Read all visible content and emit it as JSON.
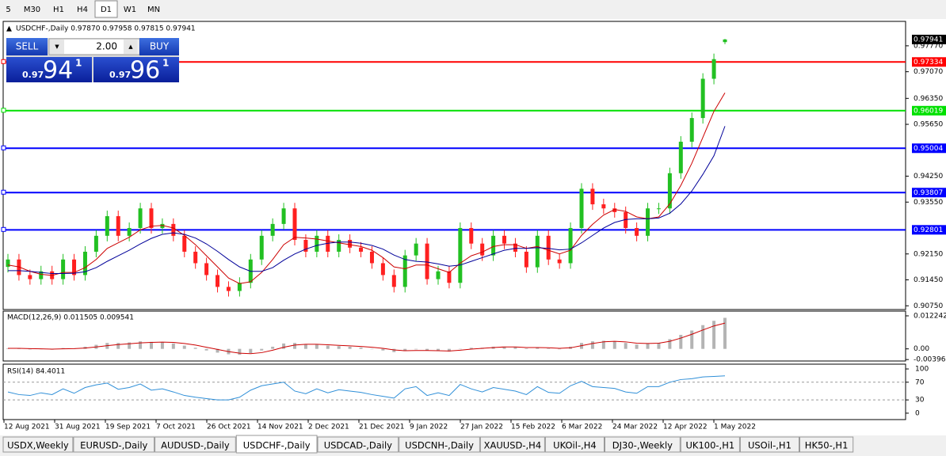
{
  "toolbar": {
    "timeframes": [
      "5",
      "M30",
      "H1",
      "H4",
      "D1",
      "W1",
      "MN"
    ],
    "selected": 4
  },
  "chart": {
    "header": "USDCHF-,Daily  0.97870 0.97958 0.97815 0.97941",
    "trade_panel": {
      "sell": "SELL",
      "buy": "BUY",
      "lot": "2.00",
      "bid": {
        "prefix": "0.97",
        "big": "94",
        "sup": "1"
      },
      "ask": {
        "prefix": "0.97",
        "big": "96",
        "sup": "1"
      }
    },
    "ylim": [
      0.9067,
      0.9843
    ],
    "ticks": [
      {
        "value": 0.9777,
        "label": "0.97770"
      },
      {
        "value": 0.9707,
        "label": "0.97070"
      },
      {
        "value": 0.9635,
        "label": "0.96350"
      },
      {
        "value": 0.9565,
        "label": "0.95650"
      },
      {
        "value": 0.9425,
        "label": "0.94250"
      },
      {
        "value": 0.9355,
        "label": "0.93550"
      },
      {
        "value": 0.9215,
        "label": "0.92150"
      },
      {
        "value": 0.9145,
        "label": "0.91450"
      },
      {
        "value": 0.9075,
        "label": "0.90750"
      }
    ],
    "levels": [
      {
        "value": 0.97334,
        "color": "#ff0000"
      },
      {
        "value": 0.96019,
        "color": "#00e000"
      },
      {
        "value": 0.95004,
        "color": "#0000ff"
      },
      {
        "value": 0.93807,
        "color": "#0000ff"
      },
      {
        "value": 0.92801,
        "color": "#0000ff"
      }
    ],
    "current_price": 0.97941,
    "up_color": "#22c022",
    "down_color": "#ff2020",
    "candles": [
      [
        0.918,
        0.9215,
        0.9165,
        0.92
      ],
      [
        0.92,
        0.9215,
        0.9143,
        0.9158
      ],
      [
        0.9158,
        0.9173,
        0.9132,
        0.9147
      ],
      [
        0.9147,
        0.9183,
        0.9132,
        0.9168
      ],
      [
        0.9168,
        0.9183,
        0.9132,
        0.9147
      ],
      [
        0.9147,
        0.9215,
        0.9132,
        0.92
      ],
      [
        0.92,
        0.9215,
        0.9143,
        0.9158
      ],
      [
        0.9158,
        0.9236,
        0.9143,
        0.9221
      ],
      [
        0.9221,
        0.9279,
        0.9206,
        0.9264
      ],
      [
        0.9264,
        0.9332,
        0.9249,
        0.9317
      ],
      [
        0.9317,
        0.9332,
        0.9249,
        0.9264
      ],
      [
        0.9264,
        0.93,
        0.9249,
        0.9285
      ],
      [
        0.9285,
        0.9353,
        0.927,
        0.9338
      ],
      [
        0.9338,
        0.9353,
        0.927,
        0.9285
      ],
      [
        0.9285,
        0.9311,
        0.927,
        0.9296
      ],
      [
        0.9296,
        0.9311,
        0.9249,
        0.9264
      ],
      [
        0.9264,
        0.9279,
        0.9206,
        0.9221
      ],
      [
        0.9221,
        0.9236,
        0.9175,
        0.919
      ],
      [
        0.919,
        0.9205,
        0.9143,
        0.9158
      ],
      [
        0.9158,
        0.9173,
        0.9111,
        0.9126
      ],
      [
        0.9126,
        0.9141,
        0.91,
        0.9115
      ],
      [
        0.9115,
        0.9152,
        0.91,
        0.9137
      ],
      [
        0.9137,
        0.9215,
        0.9122,
        0.92
      ],
      [
        0.92,
        0.9279,
        0.9185,
        0.9264
      ],
      [
        0.9264,
        0.9311,
        0.9249,
        0.9296
      ],
      [
        0.9296,
        0.9353,
        0.9281,
        0.9338
      ],
      [
        0.9338,
        0.9353,
        0.9238,
        0.9253
      ],
      [
        0.9253,
        0.9268,
        0.9206,
        0.9221
      ],
      [
        0.9221,
        0.9279,
        0.9206,
        0.9264
      ],
      [
        0.9264,
        0.9279,
        0.9206,
        0.9221
      ],
      [
        0.9221,
        0.9268,
        0.9206,
        0.9253
      ],
      [
        0.9253,
        0.9268,
        0.9217,
        0.9232
      ],
      [
        0.9232,
        0.9247,
        0.9206,
        0.9221
      ],
      [
        0.9221,
        0.9236,
        0.9175,
        0.919
      ],
      [
        0.919,
        0.9205,
        0.9143,
        0.9158
      ],
      [
        0.9158,
        0.9173,
        0.9111,
        0.9126
      ],
      [
        0.9126,
        0.9226,
        0.9111,
        0.9211
      ],
      [
        0.9211,
        0.9258,
        0.9196,
        0.9243
      ],
      [
        0.9243,
        0.9258,
        0.9132,
        0.9147
      ],
      [
        0.9147,
        0.9183,
        0.9132,
        0.9168
      ],
      [
        0.9168,
        0.9183,
        0.9122,
        0.9137
      ],
      [
        0.9137,
        0.93,
        0.9122,
        0.9285
      ],
      [
        0.9285,
        0.93,
        0.9228,
        0.9243
      ],
      [
        0.9243,
        0.9258,
        0.9196,
        0.9211
      ],
      [
        0.9211,
        0.9279,
        0.9196,
        0.9264
      ],
      [
        0.9264,
        0.9279,
        0.9228,
        0.9243
      ],
      [
        0.9243,
        0.9258,
        0.9206,
        0.9221
      ],
      [
        0.9221,
        0.9236,
        0.9164,
        0.9179
      ],
      [
        0.9179,
        0.9279,
        0.9164,
        0.9264
      ],
      [
        0.9264,
        0.9279,
        0.9185,
        0.92
      ],
      [
        0.92,
        0.9215,
        0.9175,
        0.919
      ],
      [
        0.919,
        0.93,
        0.9175,
        0.9285
      ],
      [
        0.9285,
        0.9406,
        0.927,
        0.9391
      ],
      [
        0.9391,
        0.9406,
        0.9334,
        0.9349
      ],
      [
        0.9349,
        0.9364,
        0.9323,
        0.9338
      ],
      [
        0.9338,
        0.9353,
        0.9313,
        0.9328
      ],
      [
        0.9328,
        0.9343,
        0.927,
        0.9285
      ],
      [
        0.9285,
        0.93,
        0.9249,
        0.9264
      ],
      [
        0.9264,
        0.9353,
        0.9249,
        0.9338
      ],
      [
        0.9338,
        0.9353,
        0.9323,
        0.9338
      ],
      [
        0.9338,
        0.9448,
        0.9323,
        0.9433
      ],
      [
        0.9433,
        0.9533,
        0.9418,
        0.9518
      ],
      [
        0.9518,
        0.9597,
        0.9503,
        0.9582
      ],
      [
        0.9582,
        0.9703,
        0.9567,
        0.9688
      ],
      [
        0.9688,
        0.9756,
        0.9673,
        0.9741
      ],
      [
        0.9787,
        0.97958,
        0.97815,
        0.97941
      ]
    ],
    "ma_fast": {
      "color": "#cc0000",
      "values": [
        0.9185,
        0.918,
        0.9168,
        0.916,
        0.9157,
        0.9165,
        0.9165,
        0.9178,
        0.92,
        0.923,
        0.9245,
        0.926,
        0.928,
        0.929,
        0.9292,
        0.9285,
        0.9265,
        0.924,
        0.921,
        0.918,
        0.915,
        0.9135,
        0.914,
        0.9165,
        0.92,
        0.924,
        0.926,
        0.9258,
        0.9255,
        0.925,
        0.9245,
        0.924,
        0.9235,
        0.9225,
        0.9205,
        0.918,
        0.9175,
        0.9185,
        0.9185,
        0.9175,
        0.9165,
        0.919,
        0.921,
        0.922,
        0.9235,
        0.924,
        0.924,
        0.923,
        0.9235,
        0.9225,
        0.9215,
        0.9225,
        0.9265,
        0.9295,
        0.932,
        0.9335,
        0.933,
        0.9315,
        0.931,
        0.9315,
        0.935,
        0.94,
        0.946,
        0.953,
        0.96,
        0.965
      ]
    },
    "ma_slow": {
      "color": "#000099",
      "values": [
        0.917,
        0.917,
        0.9168,
        0.9165,
        0.9162,
        0.9162,
        0.9163,
        0.9167,
        0.9178,
        0.9195,
        0.921,
        0.9225,
        0.9242,
        0.9257,
        0.9268,
        0.9272,
        0.9268,
        0.9258,
        0.9242,
        0.9222,
        0.92,
        0.918,
        0.9168,
        0.9168,
        0.9178,
        0.9198,
        0.9215,
        0.9228,
        0.9238,
        0.9244,
        0.9247,
        0.9247,
        0.9244,
        0.9238,
        0.9228,
        0.9212,
        0.92,
        0.9195,
        0.9193,
        0.9188,
        0.9182,
        0.9185,
        0.9195,
        0.9205,
        0.9215,
        0.9225,
        0.923,
        0.923,
        0.9232,
        0.923,
        0.9226,
        0.9228,
        0.9245,
        0.9265,
        0.9285,
        0.93,
        0.9308,
        0.931,
        0.931,
        0.9312,
        0.9325,
        0.935,
        0.9385,
        0.943,
        0.948,
        0.956
      ]
    }
  },
  "macd": {
    "label": "MACD(12,26,9) 0.011505 0.009541",
    "ylim": [
      -0.0045,
      0.0137
    ],
    "ticks": [
      0.012242,
      {
        "value": 0,
        "label": "0.00"
      },
      -0.003963
    ],
    "histogram_color": "#b4b4b4",
    "signal_color": "#cc0000",
    "histogram": [
      0.0002,
      0.0001,
      -0.0002,
      0.0,
      -0.0003,
      0.0003,
      0.0002,
      0.0008,
      0.0015,
      0.0022,
      0.0022,
      0.0024,
      0.0028,
      0.0026,
      0.0025,
      0.002,
      0.0012,
      0.0004,
      -0.0006,
      -0.0014,
      -0.002,
      -0.0022,
      -0.0016,
      -0.0006,
      0.0008,
      0.002,
      0.0022,
      0.0018,
      0.0016,
      0.0012,
      0.001,
      0.0008,
      0.0005,
      0.0,
      -0.0006,
      -0.0012,
      -0.0008,
      -0.0002,
      -0.0006,
      -0.0008,
      -0.001,
      0.0,
      0.0004,
      0.0004,
      0.0008,
      0.0008,
      0.0006,
      0.0002,
      0.0006,
      0.0002,
      0.0,
      0.0008,
      0.0022,
      0.0028,
      0.003,
      0.0028,
      0.0022,
      0.0016,
      0.002,
      0.0022,
      0.0036,
      0.0052,
      0.0068,
      0.0088,
      0.0104,
      0.011505
    ],
    "signal": [
      0.0002,
      0.0002,
      0.0001,
      0.0,
      -0.0001,
      0.0,
      0.0001,
      0.0003,
      0.0007,
      0.0012,
      0.0016,
      0.0019,
      0.0022,
      0.0024,
      0.0025,
      0.0024,
      0.002,
      0.0014,
      0.0006,
      -0.0002,
      -0.001,
      -0.0016,
      -0.0018,
      -0.0014,
      -0.0005,
      0.0006,
      0.0014,
      0.0017,
      0.0017,
      0.0015,
      0.0013,
      0.0011,
      0.0009,
      0.0006,
      0.0002,
      -0.0004,
      -0.0007,
      -0.0006,
      -0.0006,
      -0.0007,
      -0.0008,
      -0.0005,
      -0.0001,
      0.0002,
      0.0005,
      0.0007,
      0.0007,
      0.0005,
      0.0005,
      0.0004,
      0.0002,
      0.0004,
      0.0012,
      0.002,
      0.0026,
      0.0028,
      0.0026,
      0.0021,
      0.002,
      0.0021,
      0.0028,
      0.004,
      0.0054,
      0.007,
      0.0085,
      0.009541
    ]
  },
  "rsi": {
    "label": "RSI(14) 84.4011",
    "ylim": [
      -12.7,
      109
    ],
    "ticks": [
      100,
      70,
      30,
      0
    ],
    "dashed_levels": [
      70,
      30
    ],
    "color": "#2f8fd8",
    "values": [
      48,
      42,
      40,
      46,
      42,
      55,
      45,
      58,
      64,
      68,
      54,
      58,
      66,
      52,
      55,
      48,
      40,
      36,
      33,
      30,
      30,
      36,
      52,
      62,
      66,
      70,
      50,
      44,
      55,
      46,
      53,
      50,
      47,
      42,
      38,
      34,
      55,
      60,
      40,
      46,
      40,
      65,
      55,
      48,
      58,
      54,
      50,
      42,
      60,
      47,
      45,
      62,
      72,
      60,
      58,
      56,
      48,
      45,
      60,
      60,
      70,
      76,
      78,
      82,
      83,
      84.4011
    ]
  },
  "dates": [
    "12 Aug 2021",
    "31 Aug 2021",
    "19 Sep 2021",
    "7 Oct 2021",
    "26 Oct 2021",
    "14 Nov 2021",
    "2 Dec 2021",
    "21 Dec 2021",
    "9 Jan 2022",
    "27 Jan 2022",
    "15 Feb 2022",
    "6 Mar 2022",
    "24 Mar 2022",
    "12 Apr 2022",
    "1 May 2022"
  ],
  "tabs": [
    "USDX,Weekly",
    "EURUSD-,Daily",
    "AUDUSD-,Daily",
    "USDCHF-,Daily",
    "USDCAD-,Daily",
    "USDCNH-,Daily",
    "XAUUSD-,H4",
    "UKOil-,H4",
    "DJ30-,Weekly",
    "UK100-,H1",
    "USOil-,H1",
    "HK50-,H1"
  ],
  "active_tab": 3
}
